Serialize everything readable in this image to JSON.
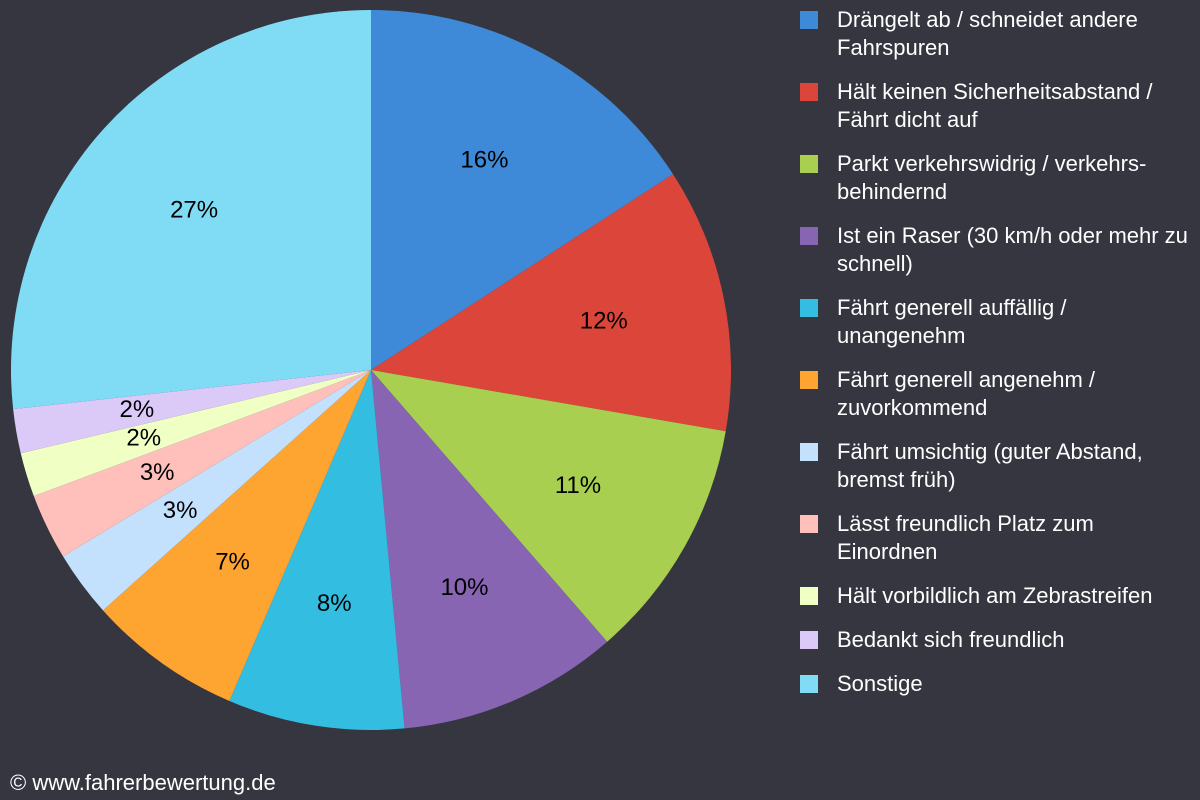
{
  "chart_data": {
    "type": "pie",
    "categories": [
      "Drängelt ab / schneidet andere Fahrspuren",
      "Hält keinen Sicherheitsabstand / Fährt dicht auf",
      "Parkt verkehrswidrig / verkehrs-behindernd",
      "Ist ein Raser (30 km/h oder mehr zu schnell)",
      "Fährt generell auffällig / unangenehm",
      "Fährt generell angenehm / zuvorkommend",
      "Fährt umsichtig (guter Abstand, bremst früh)",
      "Lässt freundlich Platz zum Einordnen",
      "Hält vorbildlich am Zebrastreifen",
      "Bedankt sich freundlich",
      "Sonstige"
    ],
    "values": [
      16,
      12,
      11,
      10,
      8,
      7,
      3,
      3,
      2,
      2,
      27
    ],
    "value_labels": [
      "16%",
      "12%",
      "11%",
      "10%",
      "8%",
      "7%",
      "3%",
      "3%",
      "2%",
      "2%",
      "27%"
    ],
    "colors": [
      "#3e8ad8",
      "#dc4539",
      "#a8cf4f",
      "#8765b3",
      "#33bde0",
      "#fea431",
      "#c3e0fd",
      "#ffbfbb",
      "#f0ffc3",
      "#dbc9f8",
      "#80dcf5"
    ],
    "legend": "right"
  },
  "footer": "© www.fahrerbewertung.de"
}
